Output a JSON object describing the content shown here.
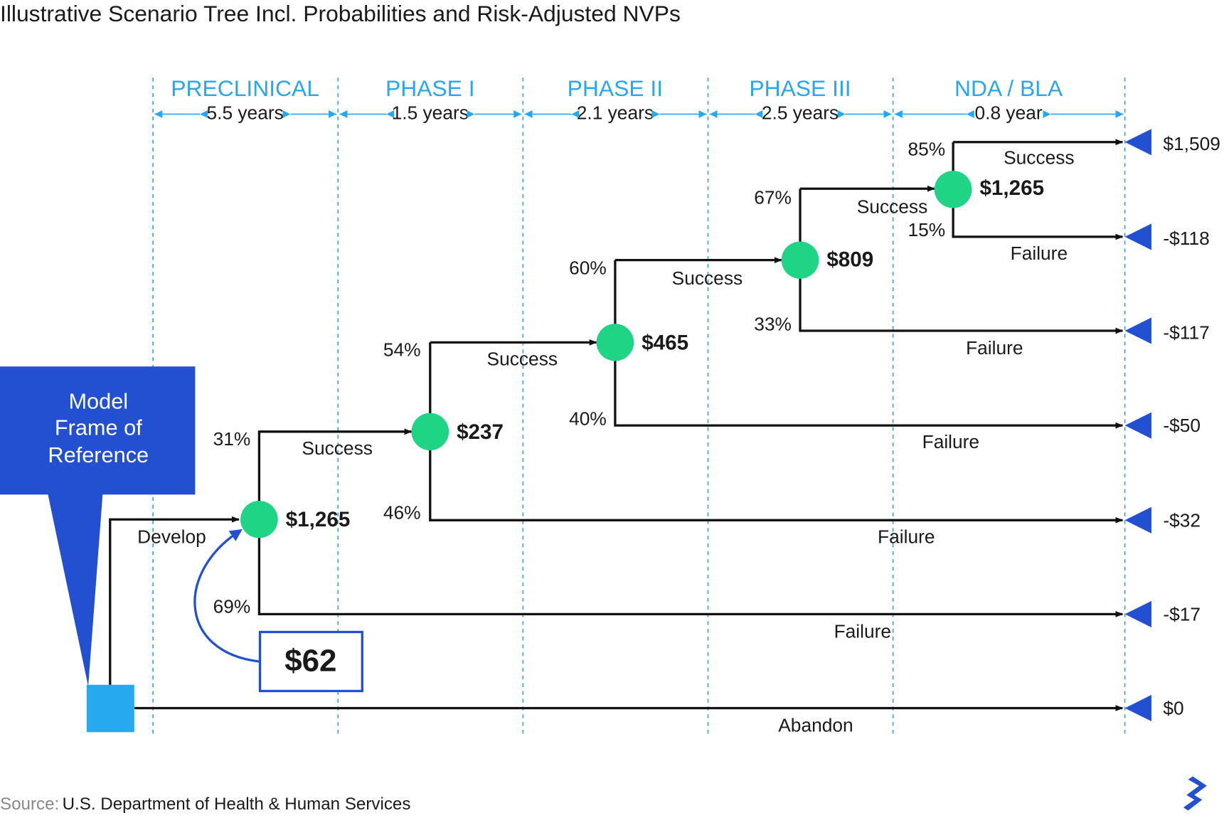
{
  "title": "Illustrative Scenario Tree Incl. Probabilities and Risk-Adjusted NVPs",
  "phases": [
    {
      "name": "PRECLINICAL",
      "duration": "5.5 years"
    },
    {
      "name": "PHASE I",
      "duration": "1.5 years"
    },
    {
      "name": "PHASE II",
      "duration": "2.1 years"
    },
    {
      "name": "PHASE III",
      "duration": "2.5 years"
    },
    {
      "name": "NDA / BLA",
      "duration": "0.8 year"
    }
  ],
  "callout": {
    "lines": [
      "Model",
      "Frame of",
      "Reference"
    ],
    "value": "$62"
  },
  "nodes": [
    {
      "value": "$1,265",
      "success_prob": "31%",
      "failure_prob": "69%",
      "success_label": "Success",
      "failure_label": "Failure"
    },
    {
      "value": "$237",
      "success_prob": "54%",
      "failure_prob": "46%",
      "success_label": "Success",
      "failure_label": "Failure"
    },
    {
      "value": "$465",
      "success_prob": "60%",
      "failure_prob": "40%",
      "success_label": "Success",
      "failure_label": "Failure"
    },
    {
      "value": "$809",
      "success_prob": "67%",
      "failure_prob": "33%",
      "success_label": "Success",
      "failure_label": "Failure"
    },
    {
      "value": "$1,265",
      "success_prob": "85%",
      "failure_prob": "15%",
      "success_label": "Success",
      "failure_label": "Failure"
    }
  ],
  "develop_label": "Develop",
  "abandon_label": "Abandon",
  "outcomes": [
    "$1,509",
    "-$118",
    "-$117",
    "-$50",
    "-$32",
    "-$17",
    "$0"
  ],
  "source": {
    "prefix": "Source:",
    "text": "U.S. Department of Health & Human Services"
  }
}
